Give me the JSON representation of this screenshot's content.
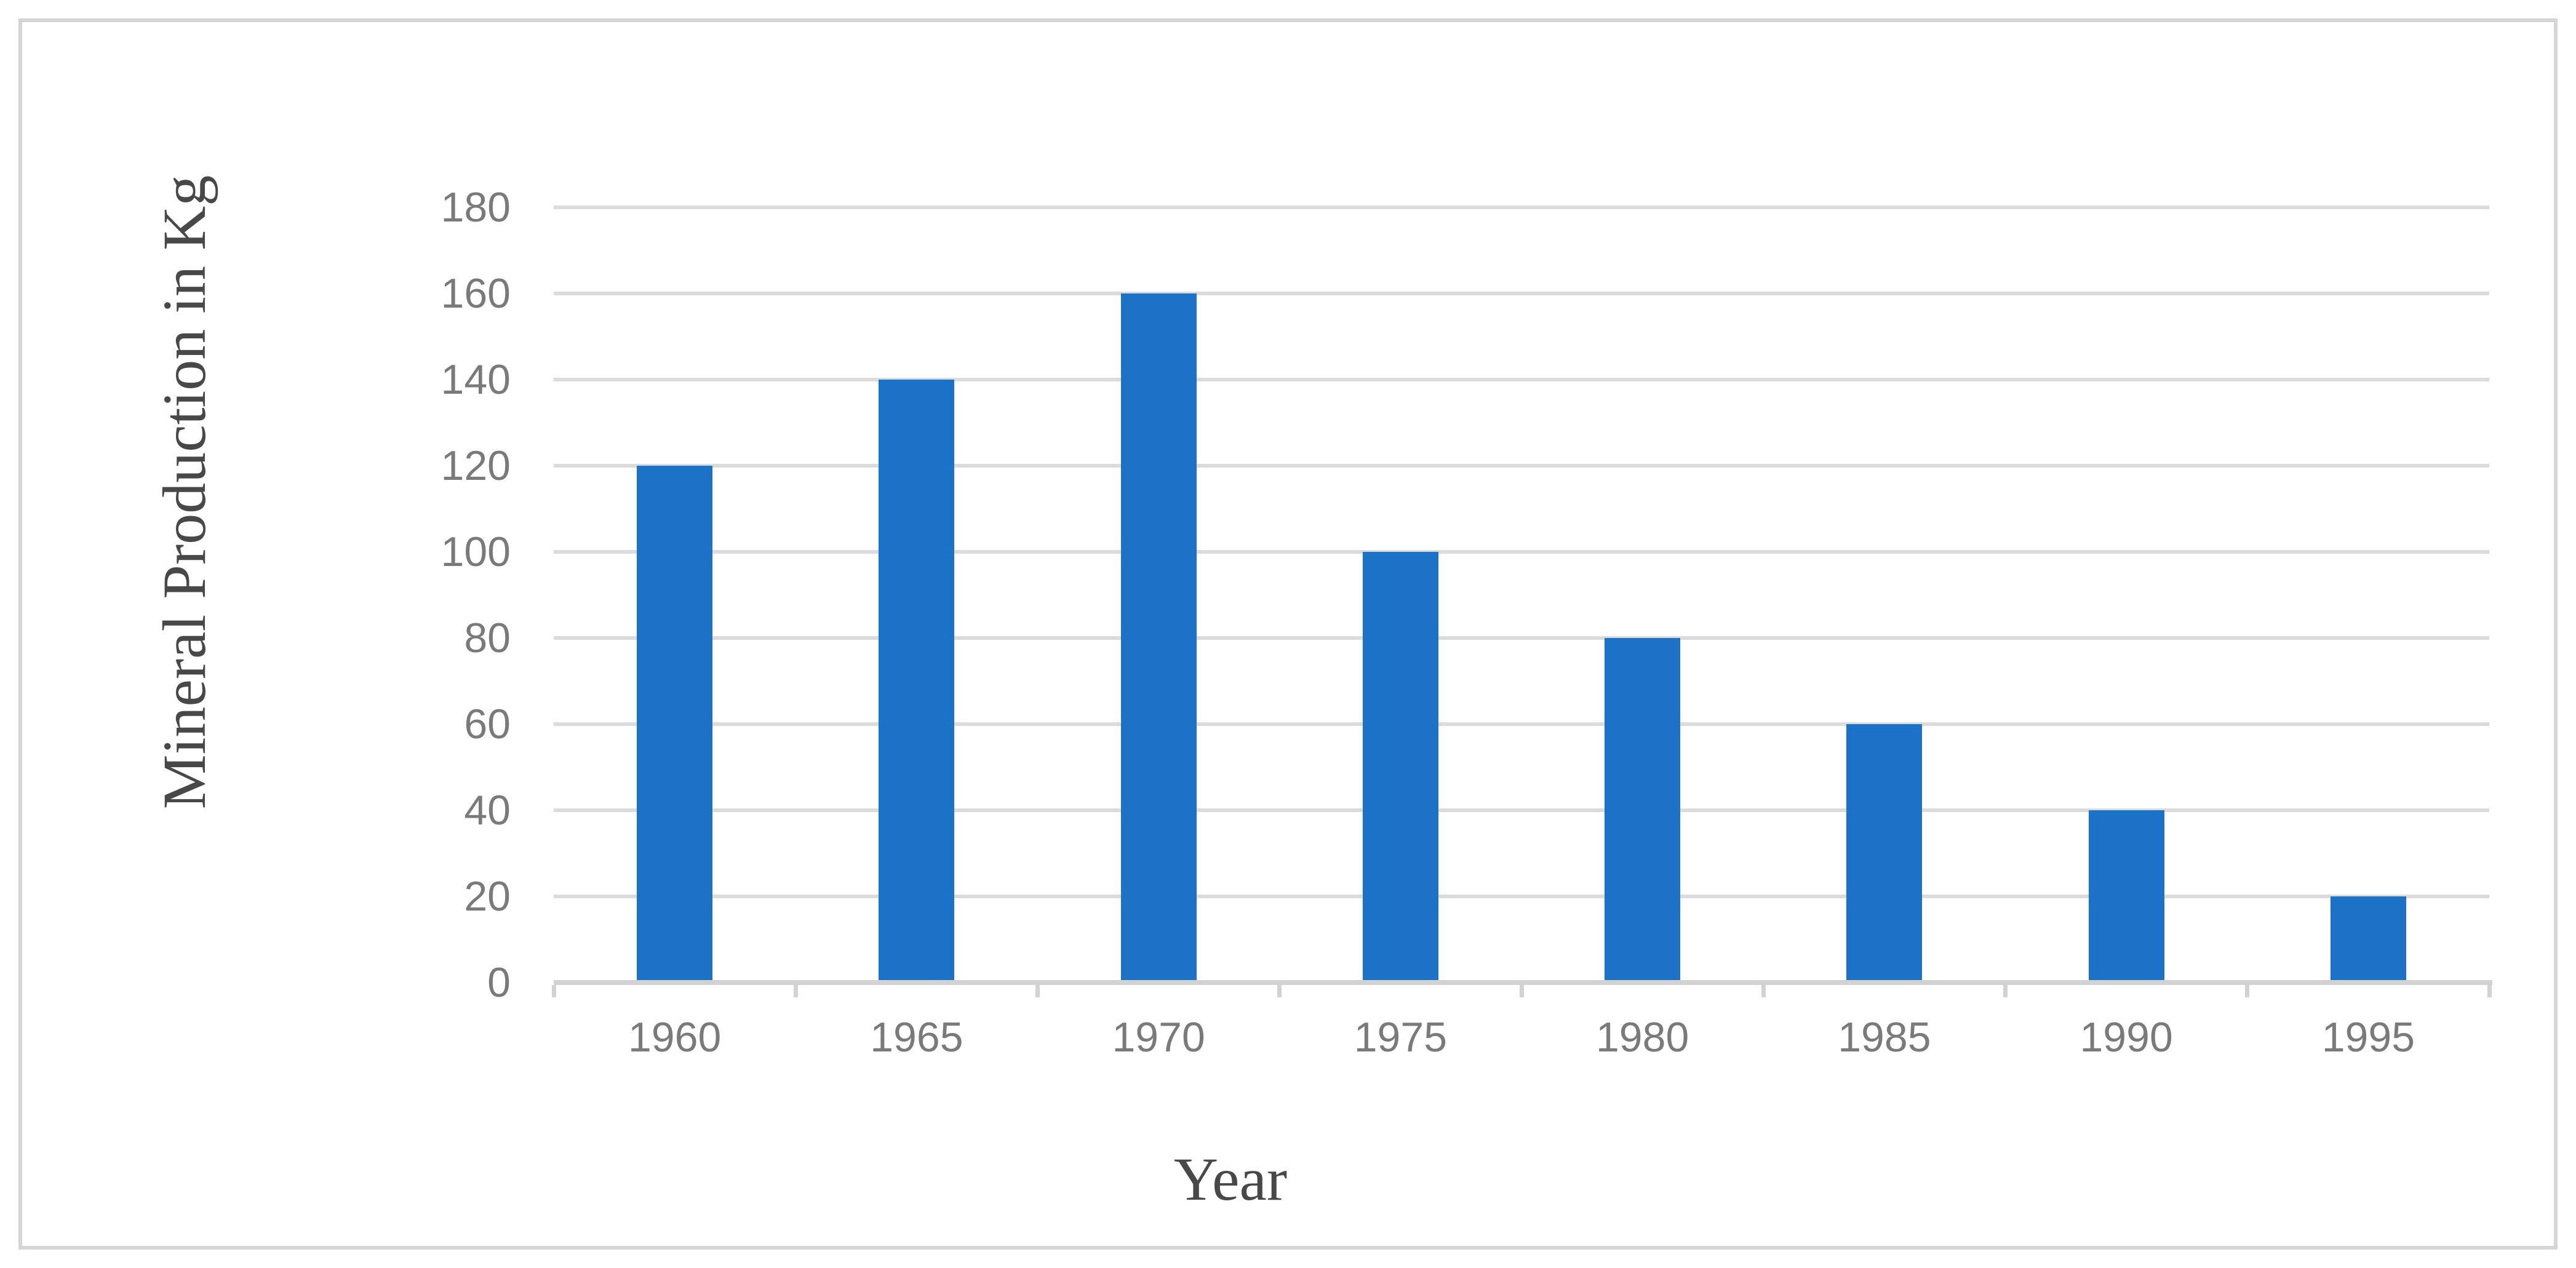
{
  "chart_data": {
    "type": "bar",
    "title": "",
    "categories": [
      "1960",
      "1965",
      "1970",
      "1975",
      "1980",
      "1985",
      "1990",
      "1995"
    ],
    "values": [
      120,
      140,
      160,
      100,
      80,
      60,
      40,
      20
    ],
    "xlabel": "Year",
    "ylabel": "Mineral Production in Kg",
    "ylim": [
      0,
      180
    ],
    "yticks": [
      0,
      20,
      40,
      60,
      80,
      100,
      120,
      140,
      160,
      180
    ],
    "ytick_step": 20,
    "grid": true,
    "legend": false,
    "bar_gap_ratio": 0.69,
    "colors": {
      "bar": "#1B72C6",
      "gridline": "#DBDBDB",
      "axis_line": "#D2D2D2",
      "tick_label": "#7A7A7A",
      "axis_title": "#484848",
      "frame_border": "#D5D5D5",
      "background": "#FFFFFF"
    }
  }
}
